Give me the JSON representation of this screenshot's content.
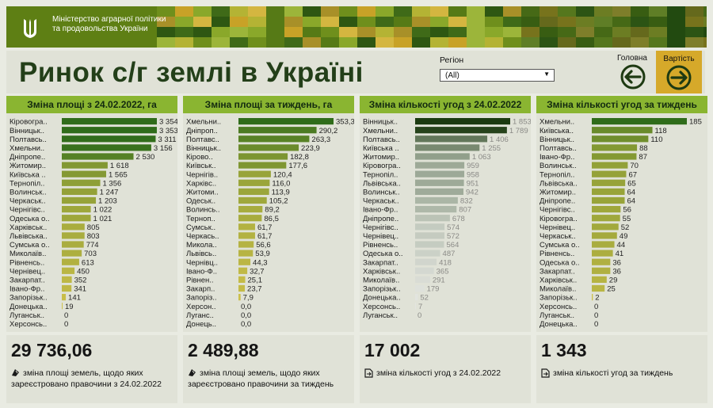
{
  "banner": {
    "ministry_name": "Міністерство аграрної політики та продовольства України"
  },
  "header": {
    "title": "Ринок с/г землі в Україні",
    "region_label": "Регіон",
    "region_value": "(All)",
    "home_label": "Головна",
    "value_label": "Вартість"
  },
  "colors": {
    "banner": "#5e7f14",
    "header_bar": "#8ab531",
    "title": "#233f19",
    "value_button": "#d6a92a"
  },
  "chart_data": [
    {
      "type": "bar",
      "orientation": "horizontal",
      "title": "Зміна площі з 24.02.2022, га",
      "categories": [
        "Кіровогра..",
        "Вінницьк..",
        "Полтавсь..",
        "Хмельни..",
        "Дніпропе..",
        "Житомир..",
        "Київська ..",
        "Тернопіл..",
        "Волинськ..",
        "Черкаськ..",
        "Чернігівс..",
        "Одеська о..",
        "Харківськ..",
        "Львівська..",
        "Сумська о..",
        "Миколаїв..",
        "Рівненсь..",
        "Чернівец..",
        "Закарпат..",
        "Івано-Фр..",
        "Запорізьк..",
        "Донецька..",
        "Луганськ..",
        "Херсонсь.."
      ],
      "values": [
        3354,
        3353,
        3311,
        3156,
        2530,
        1618,
        1565,
        1356,
        1247,
        1203,
        1022,
        1021,
        805,
        803,
        774,
        703,
        613,
        450,
        352,
        341,
        141,
        19,
        0,
        0
      ],
      "labels": [
        "3 354",
        "3 353",
        "3 311",
        "3 156",
        "2 530",
        "1 618",
        "1 565",
        "1 356",
        "1 247",
        "1 203",
        "1 022",
        "1 021",
        "805",
        "803",
        "774",
        "703",
        "613",
        "450",
        "352",
        "341",
        "141",
        "19",
        "0",
        "0"
      ],
      "color_scale": [
        "#cfc14a",
        "#2f6c1a"
      ]
    },
    {
      "type": "bar",
      "orientation": "horizontal",
      "title": "Зміна площі за тиждень, га",
      "categories": [
        "Хмельни..",
        "Дніпроп..",
        "Полтавс..",
        "Вінницьк..",
        "Кірово..",
        "Київськ..",
        "Чернігів..",
        "Харківс..",
        "Житоми..",
        "Одеськ..",
        "Волинсь..",
        "Терноп..",
        "Сумськ..",
        "Черкась..",
        "Микола..",
        "Львівсь..",
        "Чернівц..",
        "Івано-Ф..",
        "Рівнен..",
        "Закарп..",
        "Запоріз..",
        "Херсон..",
        "Луганс..",
        "Донець.."
      ],
      "values": [
        353.3,
        290.2,
        263.3,
        223.9,
        182.8,
        177.6,
        120.4,
        116.0,
        113.9,
        105.2,
        89.2,
        86.5,
        61.7,
        61.7,
        56.6,
        53.9,
        44.3,
        32.7,
        25.1,
        23.7,
        7.9,
        0.0,
        0.0,
        0.0
      ],
      "labels": [
        "353,3",
        "290,2",
        "263,3",
        "223,9",
        "182,8",
        "177,6",
        "120,4",
        "116,0",
        "113,9",
        "105,2",
        "89,2",
        "86,5",
        "61,7",
        "61,7",
        "56,6",
        "53,9",
        "44,3",
        "32,7",
        "25,1",
        "23,7",
        "7,9",
        "0,0",
        "0,0",
        "0,0"
      ],
      "color_scale": [
        "#cfc14a",
        "#2f6c1a"
      ]
    },
    {
      "type": "bar",
      "orientation": "horizontal",
      "title": "Зміна кількості угод з 24.02.2022",
      "categories": [
        "Вінницьк..",
        "Хмельни..",
        "Полтавсь..",
        "Київська ..",
        "Житомир..",
        "Кіровогра..",
        "Тернопіл..",
        "Львівська..",
        "Волинськ..",
        "Черкаськ..",
        "Івано-Фр..",
        "Дніпропе..",
        "Чернігівс..",
        "Чернівец..",
        "Рівненсь..",
        "Одеська о..",
        "Закарпат..",
        "Харківськ..",
        "Миколаїв..",
        "Запорізьк..",
        "Донецька..",
        "Херсонсь..",
        "Луганськ.."
      ],
      "values": [
        1853,
        1789,
        1406,
        1255,
        1063,
        959,
        958,
        951,
        942,
        832,
        807,
        678,
        574,
        572,
        564,
        487,
        418,
        365,
        291,
        179,
        52,
        7,
        0
      ],
      "labels": [
        "1 853",
        "1 789",
        "1 406",
        "1 255",
        "1 063",
        "959",
        "958",
        "951",
        "942",
        "832",
        "807",
        "678",
        "574",
        "572",
        "564",
        "487",
        "418",
        "365",
        "291",
        "179",
        "52",
        "7",
        "0"
      ],
      "color_scale": [
        "#e3e5e0",
        "#1b3a10"
      ]
    },
    {
      "type": "bar",
      "orientation": "horizontal",
      "title": "Зміна кількості угод за тиждень",
      "categories": [
        "Хмельни..",
        "Київська..",
        "Вінницьк..",
        "Полтавсь..",
        "Івано-Фр..",
        "Волинськ..",
        "Тернопіл..",
        "Львівська..",
        "Житомир..",
        "Дніпропе..",
        "Чернігівс..",
        "Кіровогра..",
        "Чернівец..",
        "Черкаськ..",
        "Сумська о..",
        "Рівненсь..",
        "Одеська о..",
        "Закарпат..",
        "Харківськ..",
        "Миколаїв..",
        "Запорізьк..",
        "Херсонсь..",
        "Луганськ..",
        "Донецька.."
      ],
      "values": [
        185,
        118,
        110,
        88,
        87,
        70,
        67,
        65,
        64,
        64,
        56,
        55,
        52,
        49,
        44,
        41,
        36,
        36,
        29,
        25,
        2,
        0,
        0,
        0
      ],
      "labels": [
        "185",
        "118",
        "110",
        "88",
        "87",
        "70",
        "67",
        "65",
        "64",
        "64",
        "56",
        "55",
        "52",
        "49",
        "44",
        "41",
        "36",
        "36",
        "29",
        "25",
        "2",
        "0",
        "0",
        "0"
      ],
      "color_scale": [
        "#cfc14a",
        "#2f6c1a"
      ]
    }
  ],
  "kpis": [
    {
      "value": "29 736,06",
      "caption": "зміна площі земель, щодо яких зареєстровано правочини з 24.02.2022",
      "icon": "land-icon"
    },
    {
      "value": "2 489,88",
      "caption": "зміна площі земель, щодо яких зареєстровано правочини за тиждень",
      "icon": "land-icon"
    },
    {
      "value": "17 002",
      "caption": "зміна кількості угод з 24.02.2022",
      "icon": "document-icon"
    },
    {
      "value": "1 343",
      "caption": "зміна кількості угод за тиждень",
      "icon": "document-icon"
    }
  ]
}
